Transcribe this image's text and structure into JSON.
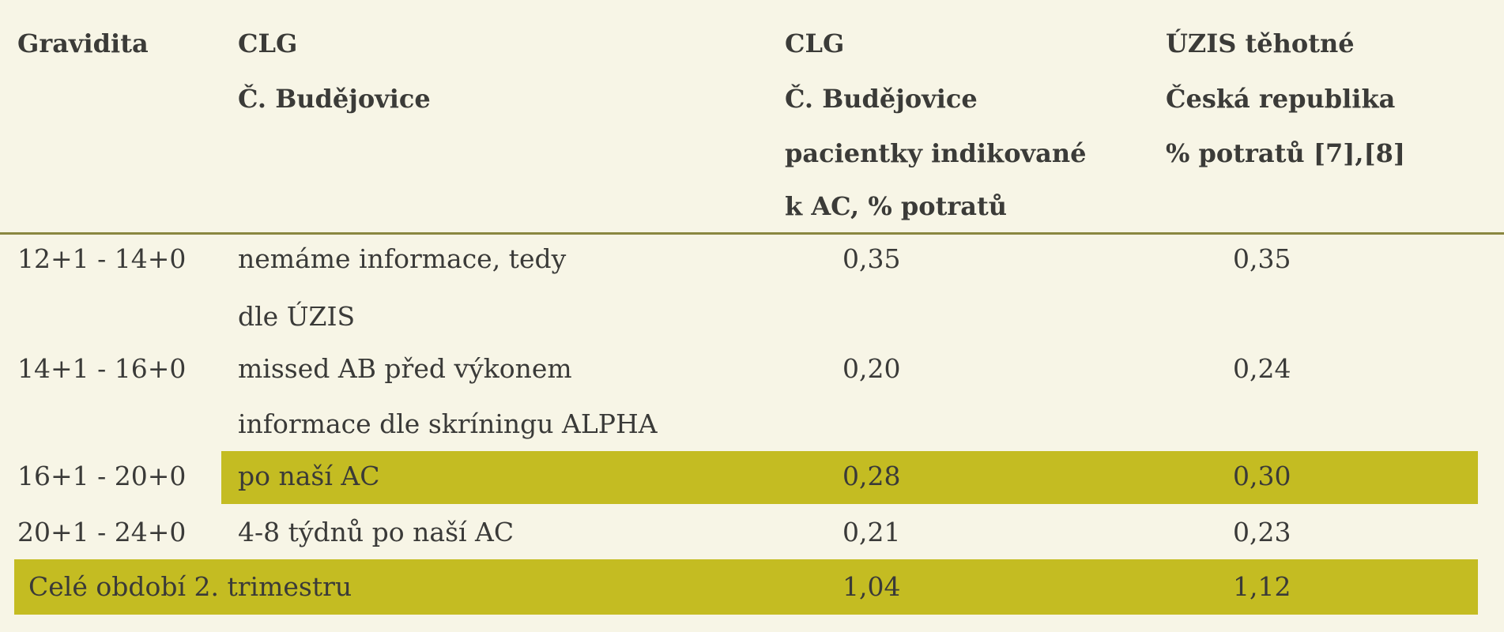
{
  "table": {
    "header": [
      [
        "Gravidita"
      ],
      [
        "CLG",
        "Č. Budějovice"
      ],
      [
        "CLG",
        "Č. Budějovice",
        "pacientky indikované",
        "k AC, % potratů"
      ],
      [
        "ÚZIS těhotné",
        "Česká republika",
        "% potratů [7],[8]"
      ]
    ],
    "rows": [
      [
        "12+1 - 14+0",
        [
          "nemáme informace, tedy",
          "dle ÚZIS"
        ],
        "0,35",
        "0,35"
      ],
      [
        "14+1 - 16+0",
        [
          "missed AB před výkonem",
          "informace dle skríningu ALPHA"
        ],
        "0,20",
        "0,24"
      ],
      [
        "16+1 - 20+0",
        [
          "po naší AC"
        ],
        "0,28",
        "0,30"
      ],
      [
        "20+1 - 24+0",
        [
          "4-8 týdnů po naší AC"
        ],
        "0,21",
        "0,23"
      ],
      [
        "Celé období 2. trimestru",
        "1,04",
        "1,12"
      ]
    ]
  }
}
